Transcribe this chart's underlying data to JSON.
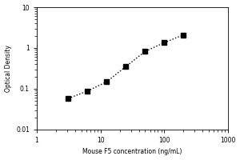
{
  "x_data": [
    3.125,
    6.25,
    12.5,
    25,
    50,
    100,
    200
  ],
  "y_data": [
    0.058,
    0.088,
    0.148,
    0.35,
    0.82,
    1.35,
    2.1
  ],
  "xlabel": "Mouse F5 concentration (ng/mL)",
  "ylabel": "Optical Density",
  "xlim": [
    1,
    1000
  ],
  "ylim": [
    0.01,
    10
  ],
  "title": "",
  "marker": "s",
  "marker_color": "black",
  "marker_size": 4,
  "line_style": ":",
  "line_color": "black",
  "line_width": 1.0,
  "background_color": "#ffffff",
  "xticks": [
    1,
    10,
    100,
    1000
  ],
  "yticks": [
    0.01,
    0.1,
    1,
    10
  ],
  "ytick_labels": [
    "0.01",
    "0.1",
    "1",
    "10"
  ],
  "xtick_labels": [
    "1",
    "10",
    "100",
    "1000"
  ]
}
